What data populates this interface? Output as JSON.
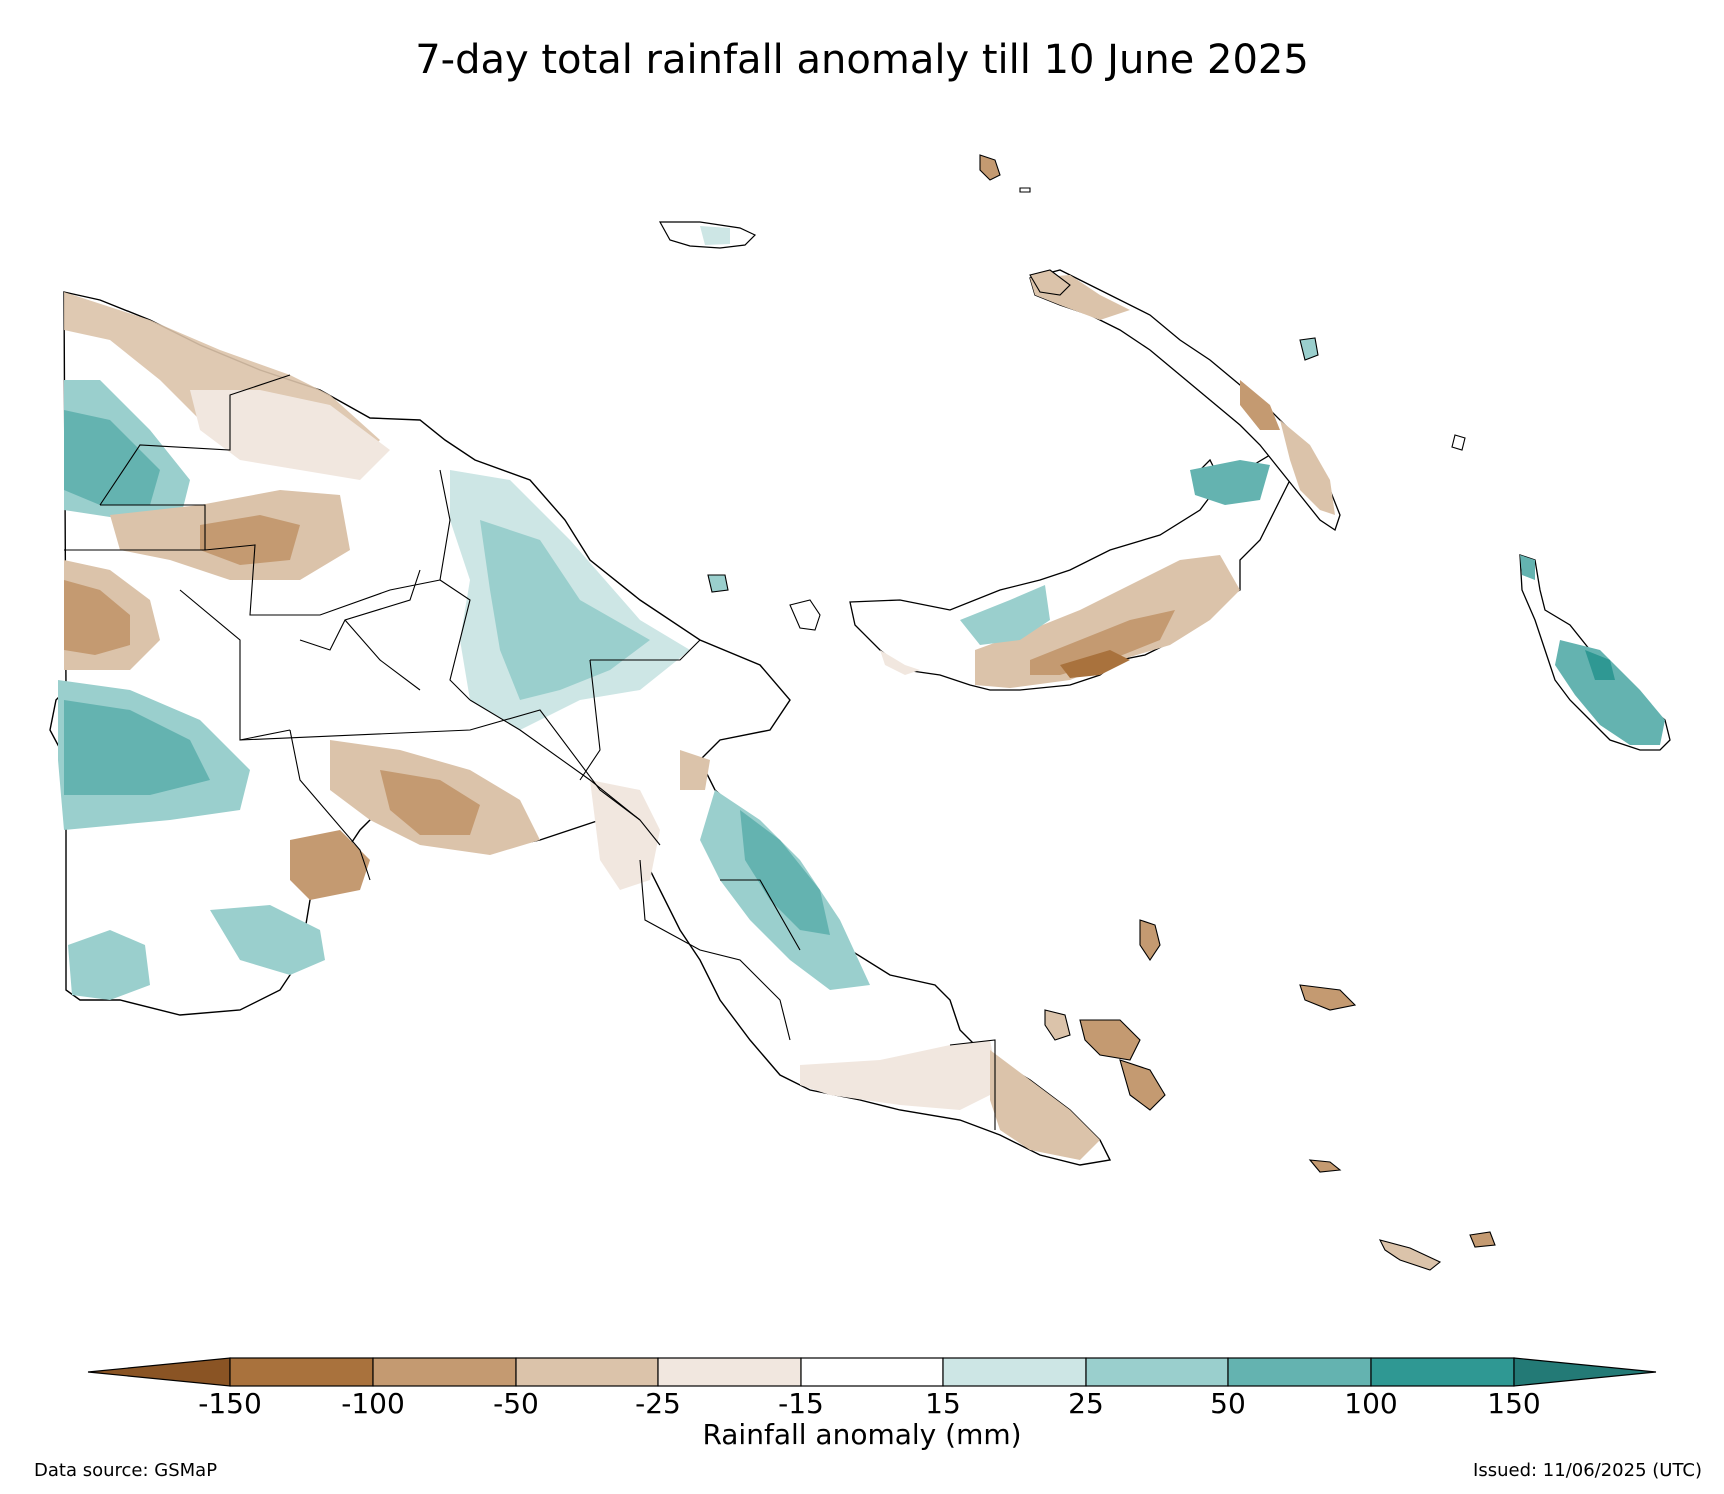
{
  "title": "7-day total rainfall anomaly till 10 June 2025",
  "colorbar": {
    "label": "Rainfall anomaly (mm)",
    "ticks": [
      "-150",
      "-100",
      "-50",
      "-25",
      "-15",
      "15",
      "25",
      "50",
      "100",
      "150"
    ],
    "colors": {
      "extend_low": "#8a5424",
      "lt_-150": "#a6713a",
      "-150_-100": "#a9723d",
      "-100_-50": "#c49a71",
      "-50_-25": "#dbc3aa",
      "-25_-15": "#f1e7df",
      "-15_15": "#ffffff",
      "15_25": "#cde6e5",
      "25_50": "#9acfcd",
      "50_100": "#64b3b0",
      "100_150": "#2f9893",
      "extend_high": "#237a76"
    }
  },
  "footer": {
    "source": "Data source: GSMaP",
    "issued": "Issued: 11/06/2025 (UTC)"
  }
}
